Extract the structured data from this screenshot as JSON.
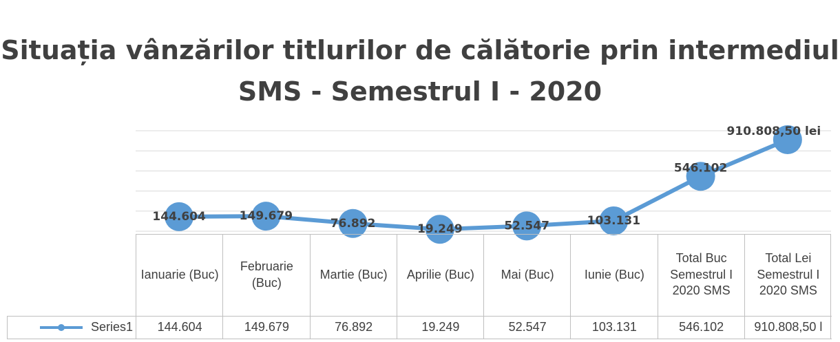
{
  "chart_data": {
    "type": "line",
    "title": "Situația vânzărilor titlurilor de călătorie prin intermediul SMS - Semestrul I - 2020",
    "categories": [
      "Ianuarie (Buc)",
      "Februarie (Buc)",
      "Martie (Buc)",
      "Aprilie (Buc)",
      "Mai (Buc)",
      "Iunie (Buc)",
      "Total Buc Semestrul I 2020 SMS",
      "Total Lei Semestrul I 2020 SMS"
    ],
    "series": [
      {
        "name": "Series1",
        "color": "#5b9bd5",
        "values": [
          144604,
          149679,
          76892,
          19249,
          52547,
          103131,
          546102,
          910808.5
        ],
        "value_labels": [
          "144.604",
          "149.679",
          "76.892",
          "19.249",
          "52.547",
          "103.131",
          "546.102",
          "910.808,50 lei"
        ],
        "table_labels": [
          "144.604",
          "149.679",
          "76.892",
          "19.249",
          "52.547",
          "103.131",
          "546.102",
          "910.808,50 l"
        ]
      }
    ],
    "ylim": [
      0,
      1000000
    ],
    "yticks": [
      0,
      200000,
      400000,
      600000,
      800000,
      1000000
    ],
    "grid": true
  }
}
